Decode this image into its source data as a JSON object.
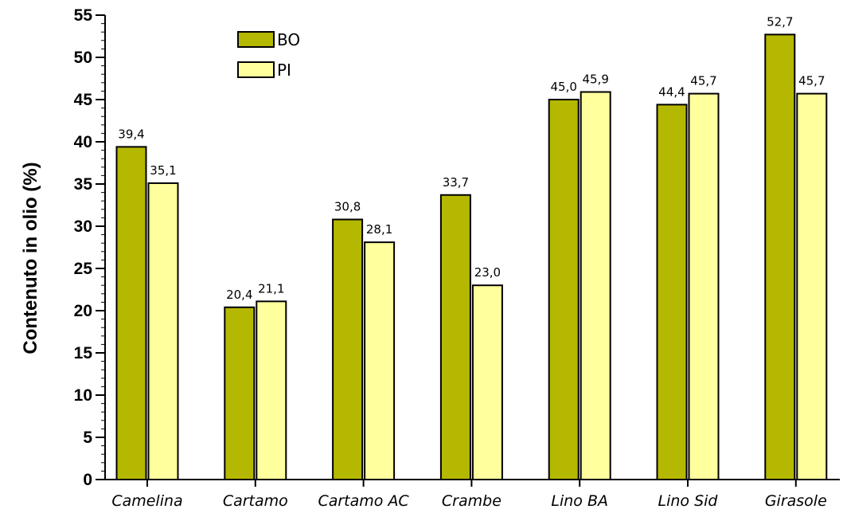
{
  "chart_data": {
    "type": "bar",
    "title": "",
    "xlabel": "",
    "ylabel": "Contenuto in olio (%)",
    "ylim": [
      0,
      55
    ],
    "ytick_step": 5,
    "yminor_step": 1,
    "grid": false,
    "legend_position": "top-left",
    "categories": [
      "Camelina",
      "Cartamo",
      "Cartamo AC",
      "Crambe",
      "Lino BA",
      "Lino Sid",
      "Girasole"
    ],
    "series": [
      {
        "name": "BO",
        "color": "#b5b800",
        "values": [
          39.4,
          20.4,
          30.8,
          33.7,
          45.0,
          44.4,
          52.7
        ],
        "labels": [
          "39,4",
          "20,4",
          "30,8",
          "33,7",
          "45,0",
          "44,4",
          "52,7"
        ]
      },
      {
        "name": "PI",
        "color": "#ffff9e",
        "values": [
          35.1,
          21.1,
          28.1,
          23.0,
          45.9,
          45.7,
          45.7
        ],
        "labels": [
          "35,1",
          "21,1",
          "28,1",
          "23,0",
          "45,9",
          "45,7",
          "45,7"
        ]
      }
    ]
  }
}
